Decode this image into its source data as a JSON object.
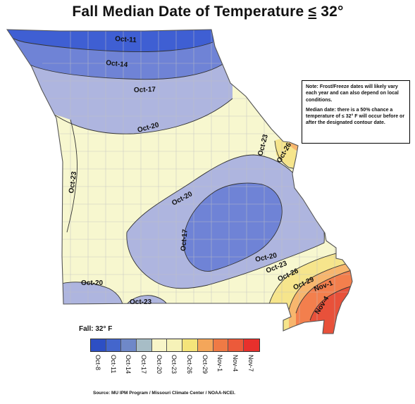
{
  "map": {
    "title_prefix": "Fall Median Date of Temperature ",
    "title_symbol": "≤",
    "title_suffix": " 32°",
    "region": "Missouri",
    "contour_labels": [
      "Oct-11",
      "Oct-14",
      "Oct-17",
      "Oct-20",
      "Oct-23",
      "Oct-26",
      "Oct-23",
      "Oct-20",
      "Oct-17",
      "Oct-20",
      "Oct-23",
      "Oct-26",
      "Oct-29",
      "Nov-1",
      "Nov-4",
      "Oct-20",
      "Oct-23"
    ]
  },
  "note": {
    "line1": "Note: Frost/Freeze dates will likely vary each year and can also depend on local conditions.",
    "line2": "Median date: there is a 50% chance a temperature of ≤ 32° F will occur before or after the designated contour date."
  },
  "legend": {
    "title": "Fall: 32° F",
    "items": [
      {
        "label": "Oct-8",
        "color": "#2d4fc4"
      },
      {
        "label": "Oct-11",
        "color": "#4466cc"
      },
      {
        "label": "Oct-14",
        "color": "#6f88c8"
      },
      {
        "label": "Oct-17",
        "color": "#a7bdc6"
      },
      {
        "label": "Oct-20",
        "color": "#f8f5c8"
      },
      {
        "label": "Oct-23",
        "color": "#f6f2b8"
      },
      {
        "label": "Oct-26",
        "color": "#f4e47a"
      },
      {
        "label": "Oct-29",
        "color": "#f4a65a"
      },
      {
        "label": "Nov-1",
        "color": "#ef7a45"
      },
      {
        "label": "Nov-4",
        "color": "#ec5a3a"
      },
      {
        "label": "Nov-7",
        "color": "#e8302c"
      }
    ]
  },
  "source": "Source: MU IPM Program / Missouri Climate Center / NOAA-NCEI.",
  "colors": {
    "oct11": "#3f5fd3",
    "oct14": "#6f83d6",
    "oct17": "#aeb5df",
    "oct20_23": "#f7f7cf",
    "oct26": "#f6e58c",
    "oct29": "#f7b66e",
    "nov1": "#f37f4d",
    "nov4": "#e8513a",
    "outline": "#6b6b6b",
    "counties": "#c0c0c0"
  }
}
